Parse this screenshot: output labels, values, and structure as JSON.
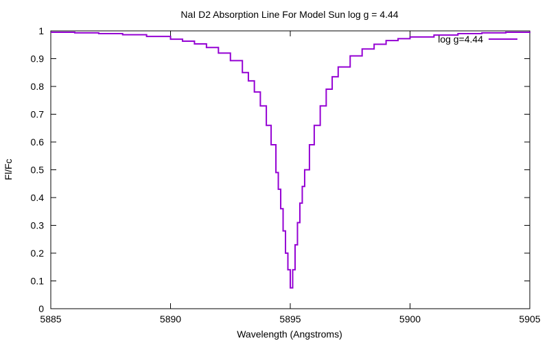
{
  "chart_data": {
    "type": "line",
    "title": "NaI D2 Absorption Line For Model Sun log g = 4.44",
    "xlabel": "Wavelength (Angstroms)",
    "ylabel": "Fl/Fc",
    "xlim": [
      5885,
      5905
    ],
    "ylim": [
      0,
      1
    ],
    "x_ticks": [
      "5885",
      "5890",
      "5895",
      "5900",
      "5905"
    ],
    "y_ticks": [
      "0",
      "0.1",
      "0.2",
      "0.3",
      "0.4",
      "0.5",
      "0.6",
      "0.7",
      "0.8",
      "0.9",
      "1"
    ],
    "grid": false,
    "legend_position": "top-right",
    "series": [
      {
        "name": "log g=4.44",
        "color": "#9400d3",
        "x": [
          5885,
          5886,
          5887,
          5888,
          5889,
          5890,
          5890.5,
          5891,
          5891.5,
          5892,
          5892.5,
          5893,
          5893.25,
          5893.5,
          5893.75,
          5894,
          5894.2,
          5894.4,
          5894.5,
          5894.6,
          5894.7,
          5894.8,
          5894.9,
          5895,
          5895.1,
          5895.2,
          5895.3,
          5895.4,
          5895.5,
          5895.6,
          5895.8,
          5896,
          5896.25,
          5896.5,
          5896.75,
          5897,
          5897.5,
          5898,
          5898.5,
          5899,
          5899.5,
          5900,
          5901,
          5902,
          5903,
          5904,
          5905
        ],
        "y": [
          0.995,
          0.993,
          0.99,
          0.986,
          0.98,
          0.97,
          0.963,
          0.953,
          0.94,
          0.92,
          0.893,
          0.85,
          0.82,
          0.78,
          0.73,
          0.66,
          0.59,
          0.49,
          0.43,
          0.36,
          0.28,
          0.2,
          0.14,
          0.075,
          0.14,
          0.23,
          0.31,
          0.38,
          0.44,
          0.5,
          0.59,
          0.66,
          0.73,
          0.79,
          0.835,
          0.87,
          0.91,
          0.935,
          0.952,
          0.965,
          0.972,
          0.978,
          0.985,
          0.99,
          0.993,
          0.995,
          0.997
        ]
      }
    ]
  }
}
